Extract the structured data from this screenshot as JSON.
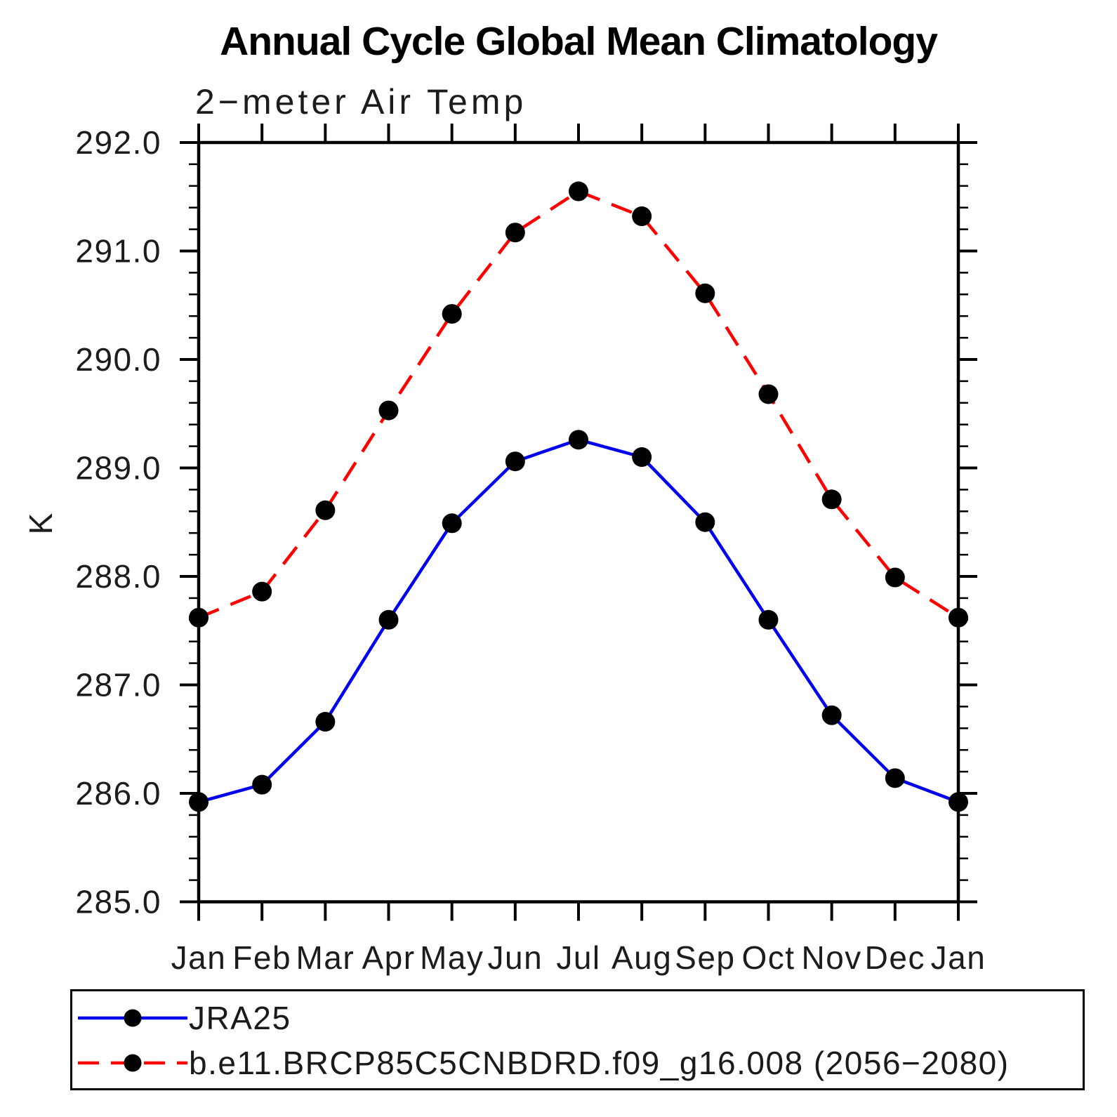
{
  "page": {
    "background": "#ffffff",
    "text_color": "#1a1a1a"
  },
  "chart_data": {
    "type": "line",
    "title": "Annual Cycle Global Mean Climatology",
    "subtitle": "2−meter Air Temp",
    "xlabel": "",
    "ylabel": "K",
    "categories": [
      "Jan",
      "Feb",
      "Mar",
      "Apr",
      "May",
      "Jun",
      "Jul",
      "Aug",
      "Sep",
      "Oct",
      "Nov",
      "Dec",
      "Jan"
    ],
    "ylim": [
      285.0,
      292.0
    ],
    "y_major_step": 1.0,
    "y_minor_step": 0.2,
    "y_ticks": [
      {
        "value": 292.0,
        "label": "292.0"
      },
      {
        "value": 291.0,
        "label": "291.0"
      },
      {
        "value": 290.0,
        "label": "290.0"
      },
      {
        "value": 289.0,
        "label": "289.0"
      },
      {
        "value": 288.0,
        "label": "288.0"
      },
      {
        "value": 287.0,
        "label": "287.0"
      },
      {
        "value": 286.0,
        "label": "286.0"
      },
      {
        "value": 285.0,
        "label": "285.0"
      }
    ],
    "grid": false,
    "legend_position": "bottom",
    "axis_color": "#000000",
    "series": [
      {
        "name": "JRA25",
        "color": "#0000ee",
        "style": "solid",
        "marker": "circle",
        "marker_color": "#000000",
        "values": [
          285.92,
          286.08,
          286.66,
          287.6,
          288.49,
          289.06,
          289.26,
          289.1,
          288.5,
          287.6,
          286.72,
          286.14,
          285.92
        ]
      },
      {
        "name": "b.e11.BRCP85C5CNBDRD.f09_g16.008 (2056−2080)",
        "color": "#ff0000",
        "style": "dashed",
        "marker": "circle",
        "marker_color": "#000000",
        "values": [
          287.62,
          287.86,
          288.61,
          289.53,
          290.42,
          291.17,
          291.55,
          291.32,
          290.61,
          289.68,
          288.71,
          287.99,
          287.62
        ]
      }
    ]
  }
}
